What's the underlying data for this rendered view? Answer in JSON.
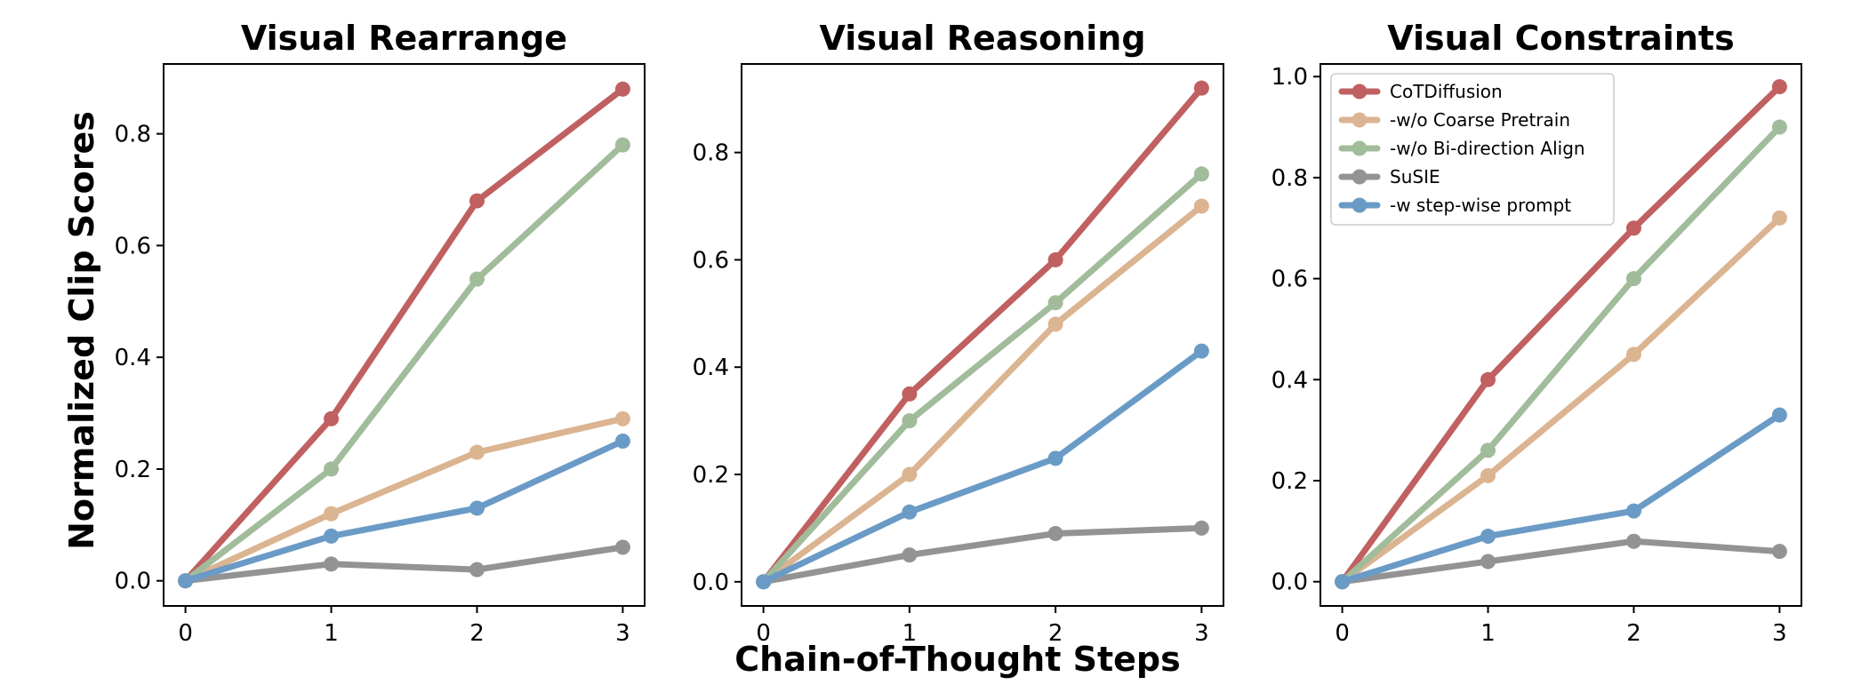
{
  "figure": {
    "xlabel": "Chain-of-Thought Steps",
    "ylabel": "Normalized Clip Scores"
  },
  "chart_data": [
    {
      "type": "line",
      "title": "Visual Rearrange",
      "x": [
        0,
        1,
        2,
        3
      ],
      "xlim": [
        -0.15,
        3.15
      ],
      "ylim": [
        -0.045,
        0.925
      ],
      "yticks": [
        0.0,
        0.2,
        0.4,
        0.6,
        0.8
      ],
      "tick_decimals": 1,
      "legend": false,
      "series": [
        {
          "name": "CoTDiffusion",
          "color": "#c06060",
          "values": [
            0,
            0.29,
            0.68,
            0.88
          ]
        },
        {
          "name": "-w/o Coarse Pretrain",
          "color": "#dbb491",
          "values": [
            0,
            0.12,
            0.23,
            0.29
          ]
        },
        {
          "name": "-w/o Bi-direction Align",
          "color": "#a1bc9b",
          "values": [
            0,
            0.2,
            0.54,
            0.78
          ]
        },
        {
          "name": "SuSIE",
          "color": "#939393",
          "values": [
            0,
            0.03,
            0.02,
            0.06
          ]
        },
        {
          "name": "-w step-wise prompt",
          "color": "#6a9bc6",
          "values": [
            0,
            0.08,
            0.13,
            0.25
          ]
        }
      ]
    },
    {
      "type": "line",
      "title": "Visual Reasoning",
      "x": [
        0,
        1,
        2,
        3
      ],
      "xlim": [
        -0.15,
        3.15
      ],
      "ylim": [
        -0.045,
        0.965
      ],
      "yticks": [
        0.0,
        0.2,
        0.4,
        0.6,
        0.8
      ],
      "tick_decimals": 1,
      "legend": false,
      "series": [
        {
          "name": "CoTDiffusion",
          "color": "#c06060",
          "values": [
            0,
            0.35,
            0.6,
            0.92
          ]
        },
        {
          "name": "-w/o Coarse Pretrain",
          "color": "#dbb491",
          "values": [
            0,
            0.2,
            0.48,
            0.7
          ]
        },
        {
          "name": "-w/o Bi-direction Align",
          "color": "#a1bc9b",
          "values": [
            0,
            0.3,
            0.52,
            0.76
          ]
        },
        {
          "name": "SuSIE",
          "color": "#939393",
          "values": [
            0,
            0.05,
            0.09,
            0.1
          ]
        },
        {
          "name": "-w step-wise prompt",
          "color": "#6a9bc6",
          "values": [
            0,
            0.13,
            0.23,
            0.43
          ]
        }
      ]
    },
    {
      "type": "line",
      "title": "Visual Constraints",
      "x": [
        0,
        1,
        2,
        3
      ],
      "xlim": [
        -0.15,
        3.15
      ],
      "ylim": [
        -0.048,
        1.025
      ],
      "yticks": [
        0.0,
        0.2,
        0.4,
        0.6,
        0.8,
        1.0
      ],
      "tick_decimals": 1,
      "legend": true,
      "legend_position": "top-left",
      "series": [
        {
          "name": "CoTDiffusion",
          "color": "#c06060",
          "values": [
            0,
            0.4,
            0.7,
            0.98
          ]
        },
        {
          "name": "-w/o Coarse Pretrain",
          "color": "#dbb491",
          "values": [
            0,
            0.21,
            0.45,
            0.72
          ]
        },
        {
          "name": "-w/o Bi-direction Align",
          "color": "#a1bc9b",
          "values": [
            0,
            0.26,
            0.6,
            0.9
          ]
        },
        {
          "name": "SuSIE",
          "color": "#939393",
          "values": [
            0,
            0.04,
            0.08,
            0.06
          ]
        },
        {
          "name": "-w step-wise prompt",
          "color": "#6a9bc6",
          "values": [
            0,
            0.09,
            0.14,
            0.33
          ]
        }
      ]
    }
  ]
}
